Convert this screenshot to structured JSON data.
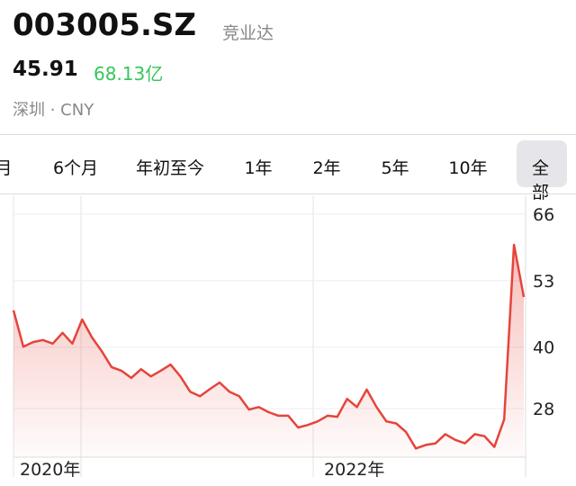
{
  "header": {
    "symbol": "003005.SZ",
    "name": "竞业达",
    "price": "45.91",
    "market_cap": "68.13亿",
    "exchange": "深圳 · CNY"
  },
  "tabs": [
    "月",
    "6个月",
    "年初至今",
    "1年",
    "2年",
    "5年",
    "10年",
    "全部"
  ],
  "chart_data": {
    "type": "line",
    "color": "#e5443b",
    "categories": [
      "2020年",
      null,
      null,
      null,
      null,
      null,
      null,
      null,
      null,
      null,
      null,
      null,
      null,
      null,
      null,
      null,
      null,
      null,
      null,
      null,
      null,
      null,
      null,
      null,
      null,
      null,
      null,
      null,
      null,
      null,
      null,
      "2022年",
      null,
      null,
      null,
      null,
      null,
      null,
      null,
      null,
      null,
      null,
      null,
      null,
      null,
      null,
      null,
      null,
      null,
      null,
      null,
      null,
      null
    ],
    "values": [
      47.2,
      40.1,
      41.0,
      41.4,
      40.7,
      42.8,
      40.7,
      45.4,
      41.9,
      39.2,
      36.1,
      35.4,
      34.0,
      35.7,
      34.3,
      35.4,
      36.6,
      34.3,
      31.3,
      30.4,
      31.8,
      33.1,
      31.3,
      30.4,
      27.8,
      28.3,
      27.3,
      26.6,
      26.6,
      24.3,
      24.8,
      25.5,
      26.6,
      26.4,
      29.9,
      28.3,
      31.7,
      28.3,
      25.5,
      25.1,
      23.4,
      20.2,
      20.9,
      21.2,
      23.0,
      21.9,
      21.2,
      23.0,
      22.6,
      20.5,
      25.9,
      60.0,
      49.8
    ],
    "ylim": [
      18.5,
      69.5
    ],
    "yticks": [
      66,
      53,
      40,
      28
    ]
  }
}
